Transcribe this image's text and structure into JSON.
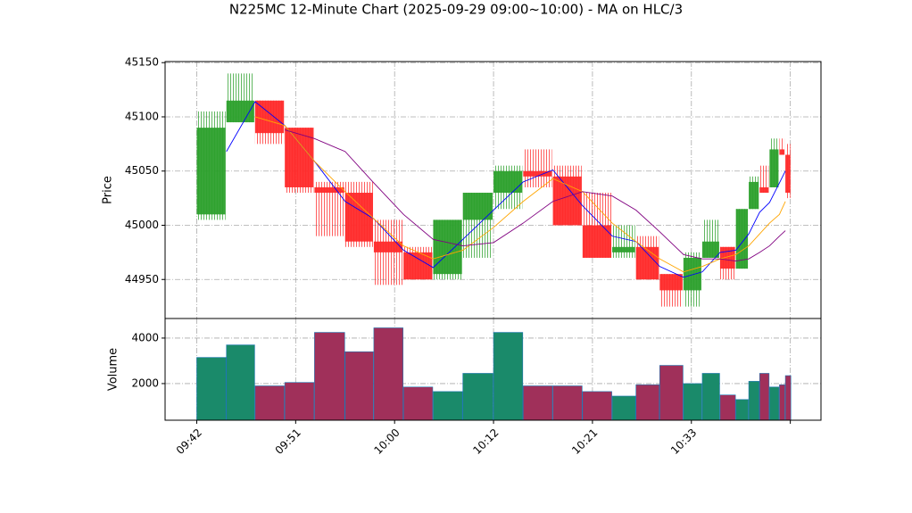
{
  "chart_data": {
    "type": "candlestick",
    "title": "N225MC 12-Minute Chart (2025-09-29 09:00~10:00) - MA on HLC/3",
    "ylabel": "Price",
    "volume_ylabel": "Volume",
    "x": [
      0,
      0.3,
      0.59,
      0.89,
      1.19,
      1.5,
      1.79,
      2.09,
      2.39,
      2.69,
      3.0,
      3.3,
      3.6,
      3.9,
      4.2,
      4.44,
      4.68,
      4.92,
      5.11,
      5.29,
      5.45,
      5.58,
      5.69,
      5.79,
      5.89,
      5.95
    ],
    "open": [
      45010,
      45095,
      45115,
      45090,
      45035,
      45030,
      44985,
      44975,
      44955,
      45005,
      45030,
      45050,
      45045,
      45000,
      44975,
      44980,
      44955,
      44940,
      44970,
      44980,
      44960,
      45015,
      45035,
      45035,
      45070,
      45065
    ],
    "high": [
      45105,
      45140,
      45115,
      45090,
      45040,
      45040,
      45005,
      44980,
      45005,
      45030,
      45055,
      45070,
      45055,
      45030,
      45000,
      44990,
      44955,
      44975,
      45005,
      44980,
      45015,
      45045,
      45055,
      45080,
      45080,
      45075
    ],
    "low": [
      45005,
      45095,
      45075,
      45030,
      44990,
      44980,
      44945,
      44950,
      44950,
      44970,
      45015,
      45035,
      45000,
      44970,
      44970,
      44950,
      44925,
      44925,
      44970,
      44950,
      44960,
      45015,
      45030,
      45035,
      45065,
      45025
    ],
    "close": [
      45090,
      45115,
      45085,
      45035,
      45030,
      44985,
      44975,
      44950,
      45005,
      45030,
      45050,
      45045,
      45000,
      44970,
      44980,
      44950,
      44940,
      44970,
      44985,
      44960,
      45015,
      45040,
      45030,
      45070,
      45065,
      45030
    ],
    "volume": [
      3150,
      3700,
      1900,
      2050,
      4250,
      3400,
      4450,
      1850,
      1650,
      2450,
      4250,
      1900,
      1900,
      1650,
      1450,
      1950,
      2800,
      2000,
      2450,
      1500,
      1300,
      2100,
      2450,
      1850,
      1950,
      2350
    ],
    "up_color": "#2ca02c",
    "down_color": "#ff2a2a",
    "volume_up_color": "#1a8a6a",
    "volume_down_color": "#a0305a",
    "series": [
      {
        "color": "#0000ff",
        "values": [
          null,
          45068,
          45114,
          45092,
          45059,
          45022,
          45006,
          44977,
          44961,
          44987,
          45014,
          45040,
          45051,
          45018,
          44990,
          44985,
          44962,
          44952,
          44957,
          44975,
          44977,
          44992,
          45012,
          45021,
          45039,
          45050
        ]
      },
      {
        "color": "#ffa500",
        "values": [
          null,
          null,
          45100,
          45092,
          45059,
          45031,
          45006,
          44981,
          44969,
          44977,
          44998,
          45022,
          45043,
          45031,
          45002,
          44985,
          44969,
          44957,
          44962,
          44969,
          44973,
          44981,
          44992,
          45002,
          45010,
          45022
        ]
      },
      {
        "color": "#800080",
        "values": [
          null,
          null,
          null,
          45088,
          45080,
          45068,
          45039,
          45010,
          44987,
          44981,
          44984,
          45002,
          45022,
          45031,
          45027,
          45014,
          44994,
          44973,
          44969,
          44969,
          44967,
          44969,
          44975,
          44981,
          44990,
          44995
        ]
      }
    ],
    "xlim": [
      -0.32,
      6.31
    ],
    "xticks": [
      {
        "value": 0,
        "label": "09:42"
      },
      {
        "value": 1,
        "label": "09:51"
      },
      {
        "value": 2,
        "label": "10:00"
      },
      {
        "value": 3,
        "label": "10:12"
      },
      {
        "value": 4,
        "label": "10:21"
      },
      {
        "value": 5,
        "label": "10:33"
      },
      {
        "value": 6
      }
    ],
    "ylim": [
      44914,
      45151
    ],
    "yticks": [
      44950,
      45000,
      45050,
      45100,
      45150
    ],
    "volume_ylim": [
      390,
      4860
    ],
    "volume_yticks": [
      2000,
      4000
    ],
    "grid": true
  }
}
